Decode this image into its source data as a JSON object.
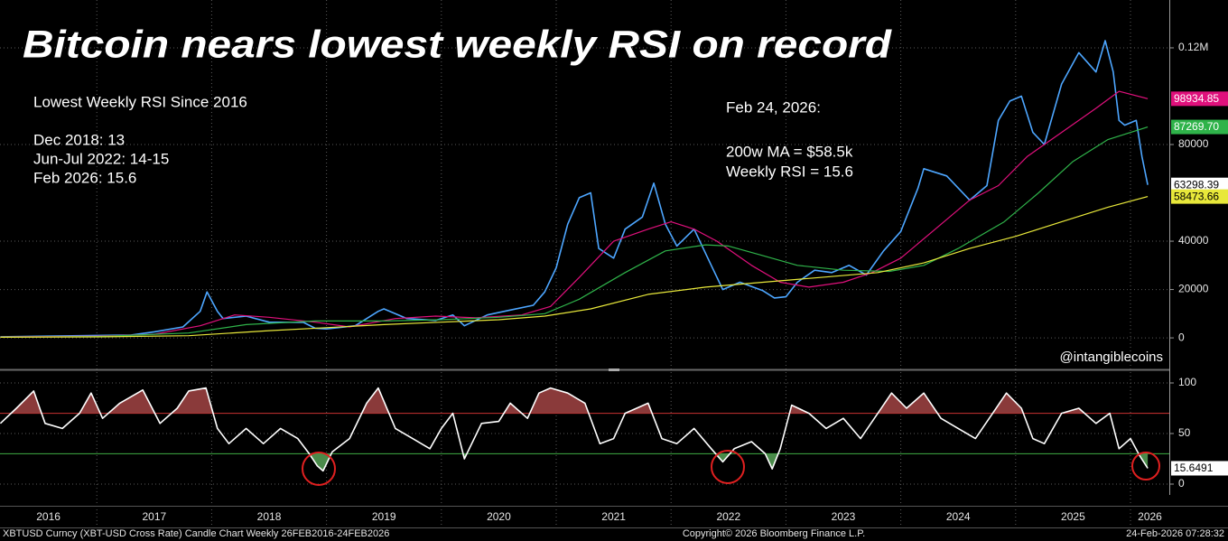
{
  "chart_data": [
    {
      "type": "line",
      "title": "Bitcoin nears lowest weekly RSI on record",
      "annotations_left": [
        "Lowest Weekly RSI Since 2016",
        "Dec 2018: 13",
        "Jun-Jul 2022: 14-15",
        "Feb 2026: 15.6"
      ],
      "annotations_right": [
        "Feb 24, 2026:",
        "200w MA = $58.5k",
        "Weekly RSI = 15.6"
      ],
      "watermark": "@intangiblecoins",
      "xlim": [
        2016.157,
        2026.338
      ],
      "xticks": [
        2016,
        2017,
        2018,
        2019,
        2020,
        2021,
        2022,
        2023,
        2024,
        2025,
        2026
      ],
      "ylim": [
        -12300,
        139800
      ],
      "yticks": [
        0,
        20000,
        40000,
        80000,
        {
          "value": 120000,
          "label": "0.12M"
        }
      ],
      "grid": true,
      "series": [
        {
          "color": "#4da6ff",
          "x": [
            2016.16,
            2016.5,
            2017.0,
            2017.3,
            2017.5,
            2017.75,
            2017.9,
            2017.96,
            2018.05,
            2018.1,
            2018.3,
            2018.5,
            2018.8,
            2018.9,
            2019.0,
            2019.25,
            2019.45,
            2019.5,
            2019.7,
            2019.95,
            2020.1,
            2020.2,
            2020.4,
            2020.6,
            2020.8,
            2020.9,
            2021.0,
            2021.1,
            2021.2,
            2021.3,
            2021.37,
            2021.5,
            2021.6,
            2021.75,
            2021.85,
            2021.95,
            2022.05,
            2022.2,
            2022.35,
            2022.45,
            2022.6,
            2022.8,
            2022.9,
            2023.0,
            2023.1,
            2023.25,
            2023.4,
            2023.55,
            2023.7,
            2023.85,
            2024.0,
            2024.15,
            2024.2,
            2024.4,
            2024.6,
            2024.75,
            2024.85,
            2024.95,
            2025.05,
            2025.15,
            2025.25,
            2025.4,
            2025.55,
            2025.7,
            2025.78,
            2025.85,
            2025.9,
            2025.95,
            2026.05,
            2026.1,
            2026.15
          ],
          "values": [
            430,
            650,
            1000,
            1200,
            2500,
            4500,
            11000,
            19000,
            11000,
            8000,
            9000,
            6500,
            6400,
            4000,
            3700,
            5000,
            11000,
            12000,
            8000,
            7200,
            9500,
            5000,
            9500,
            11500,
            13500,
            19000,
            29000,
            47000,
            58000,
            60000,
            37000,
            33000,
            45000,
            50000,
            64000,
            47000,
            38000,
            45000,
            30000,
            20000,
            23000,
            19500,
            16500,
            17000,
            23000,
            28000,
            27000,
            30000,
            26000,
            36000,
            44000,
            62000,
            70000,
            67000,
            57000,
            63000,
            90000,
            98000,
            100000,
            85000,
            80000,
            105000,
            118000,
            110000,
            123000,
            110000,
            90000,
            88000,
            90000,
            75000,
            63298.39
          ]
        },
        {
          "color": "#e0107c",
          "x": [
            2016.16,
            2017.0,
            2017.5,
            2017.9,
            2018.2,
            2018.5,
            2018.9,
            2019.2,
            2019.6,
            2019.95,
            2020.3,
            2020.7,
            2020.95,
            2021.2,
            2021.5,
            2021.8,
            2022.0,
            2022.2,
            2022.4,
            2022.7,
            2022.95,
            2023.2,
            2023.5,
            2023.75,
            2024.0,
            2024.3,
            2024.6,
            2024.85,
            2025.1,
            2025.4,
            2025.7,
            2025.9,
            2026.15
          ],
          "values": [
            400,
            700,
            1500,
            5000,
            9500,
            8500,
            6500,
            4500,
            8000,
            9000,
            8300,
            9500,
            13000,
            25000,
            40000,
            45000,
            48000,
            45000,
            40000,
            30000,
            23000,
            21000,
            23000,
            27000,
            33000,
            45000,
            57000,
            63000,
            75000,
            85000,
            95000,
            102000,
            98934.85
          ]
        },
        {
          "color": "#2fb34a",
          "x": [
            2016.16,
            2017.0,
            2017.8,
            2018.3,
            2018.9,
            2019.5,
            2020.0,
            2020.5,
            2020.9,
            2021.2,
            2021.6,
            2021.95,
            2022.3,
            2022.5,
            2022.8,
            2023.1,
            2023.5,
            2023.9,
            2024.2,
            2024.5,
            2024.9,
            2025.2,
            2025.5,
            2025.8,
            2026.15
          ],
          "values": [
            350,
            550,
            2000,
            5500,
            7000,
            7000,
            7500,
            8500,
            10000,
            16000,
            27000,
            36000,
            38500,
            38000,
            34000,
            30000,
            28000,
            27500,
            30000,
            37000,
            48000,
            60000,
            73000,
            82000,
            87269.7
          ]
        },
        {
          "color": "#e8e83a",
          "x": [
            2016.16,
            2017.0,
            2017.8,
            2018.5,
            2019.0,
            2019.5,
            2020.0,
            2020.5,
            2020.9,
            2021.3,
            2021.8,
            2022.3,
            2022.8,
            2023.3,
            2023.8,
            2024.2,
            2024.6,
            2025.0,
            2025.4,
            2025.8,
            2026.15
          ],
          "values": [
            250,
            400,
            900,
            3000,
            4200,
            5500,
            6500,
            7500,
            9000,
            12000,
            18000,
            21000,
            23000,
            25000,
            27000,
            31000,
            37000,
            42000,
            48000,
            54000,
            58473.66
          ]
        }
      ],
      "price_tags": [
        {
          "value": 98934.85,
          "color": "#e0107c",
          "text_color": "#ffffff"
        },
        {
          "value": 87269.7,
          "label": "87269.70",
          "color": "#2fb34a",
          "text_color": "#ffffff"
        },
        {
          "value": 63298.39,
          "color": "#ffffff",
          "text_color": "#000000"
        },
        {
          "value": 58473.66,
          "color": "#e8e83a",
          "text_color": "#000000"
        }
      ]
    },
    {
      "type": "line",
      "xlim": [
        2016.157,
        2026.338
      ],
      "ylim": [
        -10.7,
        110.7
      ],
      "yticks": [
        0,
        50,
        100
      ],
      "grid": true,
      "levels": [
        {
          "value": 70,
          "color": "#d23232",
          "fill": "#8a3a3a"
        },
        {
          "value": 30,
          "color": "#3cb043",
          "fill": "#4a8a4a"
        }
      ],
      "series": [
        {
          "color": "#ffffff",
          "x": [
            2016.16,
            2016.3,
            2016.45,
            2016.55,
            2016.7,
            2016.85,
            2016.95,
            2017.05,
            2017.2,
            2017.4,
            2017.55,
            2017.7,
            2017.8,
            2017.95,
            2018.05,
            2018.15,
            2018.3,
            2018.45,
            2018.6,
            2018.75,
            2018.85,
            2018.92,
            2018.97,
            2019.05,
            2019.2,
            2019.35,
            2019.45,
            2019.6,
            2019.75,
            2019.9,
            2020.0,
            2020.1,
            2020.2,
            2020.35,
            2020.5,
            2020.6,
            2020.75,
            2020.85,
            2020.95,
            2021.1,
            2021.25,
            2021.38,
            2021.5,
            2021.6,
            2021.8,
            2021.92,
            2022.05,
            2022.2,
            2022.35,
            2022.45,
            2022.55,
            2022.7,
            2022.82,
            2022.88,
            2022.95,
            2023.05,
            2023.2,
            2023.35,
            2023.5,
            2023.65,
            2023.8,
            2023.92,
            2024.05,
            2024.2,
            2024.35,
            2024.5,
            2024.65,
            2024.8,
            2024.92,
            2025.05,
            2025.15,
            2025.25,
            2025.4,
            2025.55,
            2025.7,
            2025.82,
            2025.9,
            2026.0,
            2026.08,
            2026.15
          ],
          "values": [
            60,
            75,
            92,
            60,
            55,
            70,
            90,
            65,
            80,
            93,
            60,
            75,
            92,
            95,
            55,
            40,
            55,
            40,
            55,
            45,
            30,
            18,
            13,
            32,
            45,
            80,
            95,
            55,
            45,
            35,
            55,
            70,
            25,
            60,
            62,
            80,
            65,
            90,
            95,
            90,
            80,
            40,
            45,
            70,
            80,
            45,
            40,
            55,
            35,
            22,
            35,
            42,
            30,
            15,
            35,
            78,
            70,
            55,
            65,
            45,
            70,
            90,
            75,
            90,
            65,
            55,
            45,
            70,
            90,
            75,
            45,
            40,
            70,
            75,
            60,
            70,
            35,
            45,
            28,
            15.6491
          ]
        }
      ],
      "price_tags": [
        {
          "value": 15.6491,
          "color": "#ffffff",
          "text_color": "#000000"
        }
      ]
    }
  ],
  "footer": {
    "left": "XBTUSD Curncy (XBT-USD Cross Rate) Candle Chart Weekly 26FEB2016-24FEB2026",
    "center": "Copyright© 2026 Bloomberg Finance L.P.",
    "right": "24-Feb-2026 07:28:32"
  }
}
